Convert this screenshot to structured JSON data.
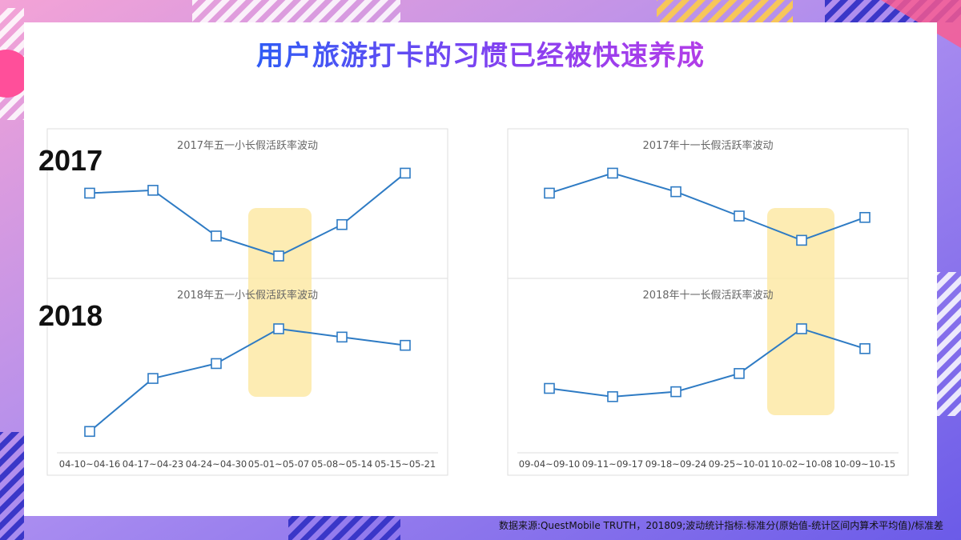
{
  "page": {
    "title": "用户旅游打卡的习惯已经被快速养成",
    "source": "数据来源:QuestMobile TRUTH，201809;波动统计指标:标准分(原始值-统计区间内算术平均值)/标准差"
  },
  "labels": {
    "year_2017": "2017",
    "year_2018": "2018"
  },
  "colors": {
    "line": "#2e7bc4",
    "highlight": "#fde9a6",
    "grid": "#dddddd",
    "tick": "#444444",
    "subtitle": "#666666"
  },
  "chart_data": [
    {
      "type": "line",
      "title": "2017年五一小长假活跃率波动",
      "categories": [
        "04-10~04-16",
        "04-17~04-23",
        "04-24~04-30",
        "05-01~05-07",
        "05-08~05-14",
        "05-15~05-21"
      ],
      "values": [
        0.9,
        1.0,
        -0.6,
        -1.3,
        -0.2,
        1.6
      ],
      "ylim": [
        -2.0,
        2.2
      ],
      "highlight_index": 3
    },
    {
      "type": "line",
      "title": "2018年五一小长假活跃率波动",
      "categories": [
        "04-10~04-16",
        "04-17~04-23",
        "04-24~04-30",
        "05-01~05-07",
        "05-08~05-14",
        "05-15~05-21"
      ],
      "values": [
        -1.9,
        -0.3,
        0.15,
        1.2,
        0.95,
        0.7
      ],
      "ylim": [
        -2.4,
        1.9
      ],
      "highlight_index": 3
    },
    {
      "type": "line",
      "title": "2017年十一长假活跃率波动",
      "categories": [
        "09-04~09-10",
        "09-11~09-17",
        "09-18~09-24",
        "09-25~10-01",
        "10-02~10-08",
        "10-09~10-15"
      ],
      "values": [
        0.9,
        1.6,
        0.95,
        0.1,
        -0.75,
        0.05
      ],
      "ylim": [
        -2.0,
        2.2
      ],
      "highlight_index": 4
    },
    {
      "type": "line",
      "title": "2018年十一长假活跃率波动",
      "categories": [
        "09-04~09-10",
        "09-11~09-17",
        "09-18~09-24",
        "09-25~10-01",
        "10-02~10-08",
        "10-09~10-15"
      ],
      "values": [
        -0.6,
        -0.85,
        -0.7,
        -0.15,
        1.2,
        0.6
      ],
      "ylim": [
        -2.4,
        1.9
      ],
      "highlight_index": 4
    }
  ]
}
